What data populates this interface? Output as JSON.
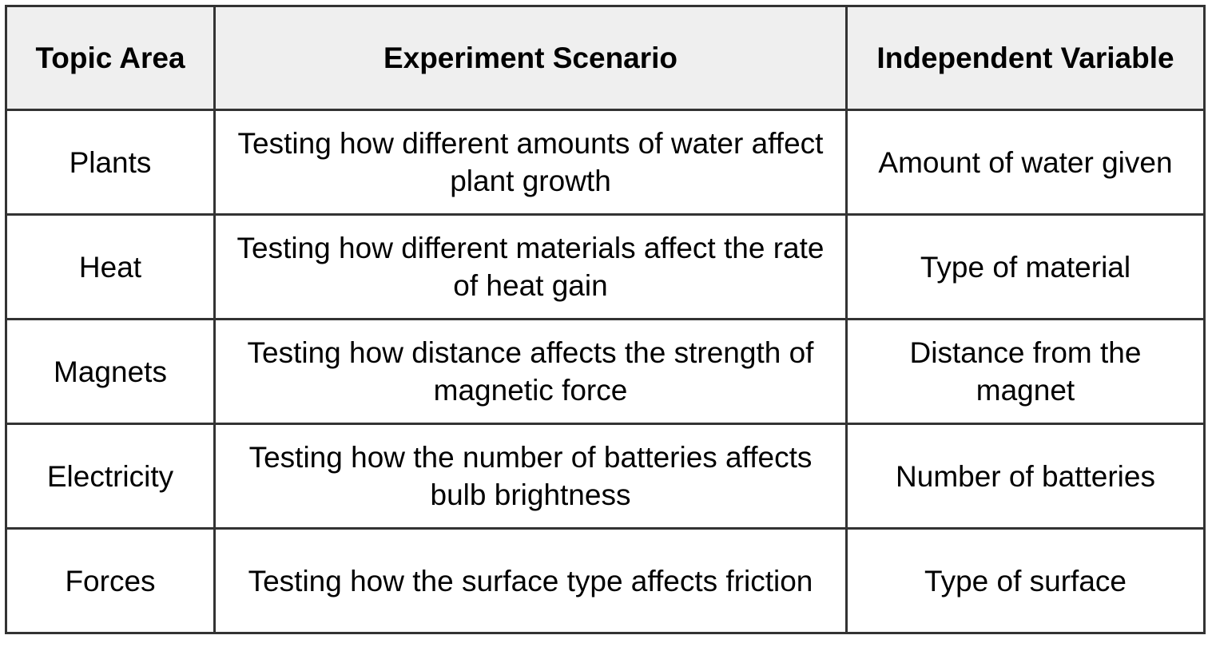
{
  "table": {
    "headers": [
      "Topic Area",
      "Experiment Scenario",
      "Independent Variable"
    ],
    "rows": [
      [
        "Plants",
        "Testing how different amounts of water affect plant growth",
        "Amount of water given"
      ],
      [
        "Heat",
        "Testing how different materials affect the rate of heat gain",
        "Type of material"
      ],
      [
        "Magnets",
        "Testing how distance affects the strength of magnetic force",
        "Distance from the magnet"
      ],
      [
        "Electricity",
        "Testing how the number of batteries affects bulb brightness",
        "Number of batteries"
      ],
      [
        "Forces",
        "Testing how the surface type affects friction",
        "Type of surface"
      ]
    ]
  }
}
